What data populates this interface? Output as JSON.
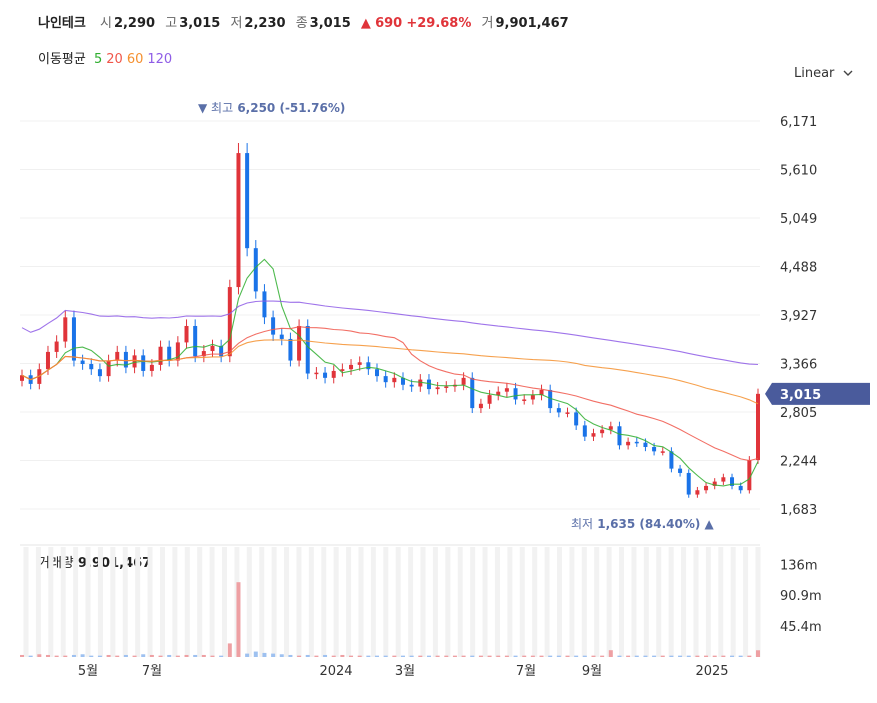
{
  "header": {
    "name": "나인테크",
    "open_label": "시",
    "open": "2,290",
    "high_label": "고",
    "high": "3,015",
    "low_label": "저",
    "low": "2,230",
    "close_label": "종",
    "close": "3,015",
    "change_arrow": "▲",
    "change": "690",
    "change_pct": "+29.68%",
    "volume_label": "거",
    "volume": "9,901,467"
  },
  "ma_legend": {
    "label": "이동평균",
    "items": [
      {
        "text": "5",
        "color": "#2fae2f"
      },
      {
        "text": "20",
        "color": "#f0564a"
      },
      {
        "text": "60",
        "color": "#f5902f"
      },
      {
        "text": "120",
        "color": "#8e5ce6"
      }
    ]
  },
  "scale_selector": {
    "label": "Linear"
  },
  "price_axis": {
    "ticks": [
      "6,171",
      "5,610",
      "5,049",
      "4,488",
      "3,927",
      "3,366",
      "2,805",
      "2,244",
      "1,683"
    ],
    "tick_values": [
      6171,
      5610,
      5049,
      4488,
      3927,
      3366,
      2805,
      2244,
      1683
    ],
    "current_value": 3015,
    "current_label": "3,015"
  },
  "annotations": {
    "high": {
      "arrow": "▼",
      "label": "최고",
      "value": "6,250 (-51.76%)"
    },
    "low": {
      "arrow": "▲",
      "label": "최저",
      "value": "1,635 (84.40%)"
    }
  },
  "volume_panel": {
    "title": "거래량",
    "value": "9,901,467",
    "ticks": [
      "136m",
      "90.9m",
      "45.4m"
    ]
  },
  "x_axis": {
    "labels": [
      "5월",
      "7월",
      "2024",
      "3월",
      "7월",
      "9월",
      "2025"
    ]
  },
  "colors": {
    "up": "#e0343a",
    "down": "#1a73e8",
    "ma5": "#2fae2f",
    "ma20": "#f0564a",
    "ma60": "#f5902f",
    "ma120": "#8e5ce6",
    "current_badge": "#4a5b9c"
  },
  "chart_data": {
    "type": "candlestick",
    "series_price_approx": [
      3230,
      3130,
      3300,
      3500,
      3620,
      3900,
      3400,
      3360,
      3300,
      3220,
      3400,
      3500,
      3320,
      3460,
      3280,
      3350,
      3560,
      3400,
      3610,
      3800,
      3450,
      3510,
      3570,
      3450,
      4250,
      5800,
      4700,
      4200,
      3900,
      3700,
      3650,
      3400,
      3800,
      3250,
      3260,
      3200,
      3280,
      3300,
      3350,
      3380,
      3300,
      3220,
      3150,
      3200,
      3120,
      3100,
      3180,
      3070,
      3090,
      3100,
      3120,
      3200,
      2850,
      2900,
      3000,
      3040,
      3080,
      2950,
      2950,
      3000,
      3060,
      2850,
      2800,
      2800,
      2650,
      2520,
      2560,
      2600,
      2640,
      2420,
      2460,
      2450,
      2400,
      2350,
      2350,
      2150,
      2100,
      1850,
      1900,
      1950,
      2000,
      2050,
      1950,
      1900,
      2250,
      3015
    ],
    "volume_approx_m": [
      3,
      2,
      4,
      3,
      2,
      2,
      3,
      4,
      2,
      2,
      3,
      2,
      3,
      2,
      4,
      3,
      2,
      3,
      2,
      3,
      3,
      3,
      2,
      2,
      20,
      110,
      5,
      8,
      6,
      5,
      4,
      3,
      2,
      3,
      2,
      3,
      2,
      3,
      2,
      2,
      2,
      2,
      2,
      2,
      2,
      2,
      2,
      2,
      2,
      2,
      2,
      2,
      2,
      2,
      2,
      2,
      2,
      2,
      2,
      2,
      2,
      2,
      2,
      2,
      2,
      2,
      2,
      2,
      10,
      2,
      2,
      2,
      2,
      2,
      2,
      2,
      2,
      2,
      2,
      2,
      2,
      2,
      2,
      2,
      2,
      9.9
    ]
  }
}
